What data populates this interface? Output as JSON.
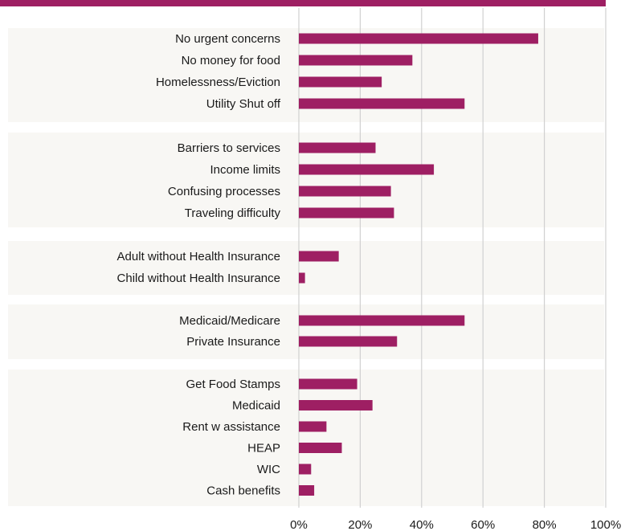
{
  "chart_data": {
    "type": "bar",
    "orientation": "horizontal",
    "title": "",
    "xlabel": "",
    "ylabel": "",
    "xlim": [
      0,
      100
    ],
    "x_ticks": [
      "0%",
      "20%",
      "40%",
      "60%",
      "80%",
      "100%"
    ],
    "grid": true,
    "legend": "none",
    "colors": {
      "bar": "#9e1f63",
      "top_rule": "#9e1f63",
      "group_band": "#f8f7f4",
      "grid": "#d0d0d0"
    },
    "groups": [
      {
        "categories": [
          "No urgent concerns",
          "No money for food",
          "Homelessness/Eviction",
          "Utility Shut off"
        ],
        "values": [
          78,
          37,
          27,
          54
        ]
      },
      {
        "categories": [
          "Barriers to services",
          "Income limits",
          "Confusing processes",
          "Traveling difficulty"
        ],
        "values": [
          25,
          44,
          30,
          31
        ]
      },
      {
        "categories": [
          "Adult without Health Insurance",
          "Child without Health Insurance"
        ],
        "values": [
          13,
          2
        ]
      },
      {
        "categories": [
          "Medicaid/Medicare",
          "Private Insurance"
        ],
        "values": [
          54,
          32
        ]
      },
      {
        "categories": [
          "Get Food Stamps",
          "Medicaid",
          "Rent w assistance",
          "HEAP",
          "WIC",
          "Cash benefits"
        ],
        "values": [
          19,
          24,
          9,
          14,
          4,
          5
        ]
      }
    ]
  }
}
